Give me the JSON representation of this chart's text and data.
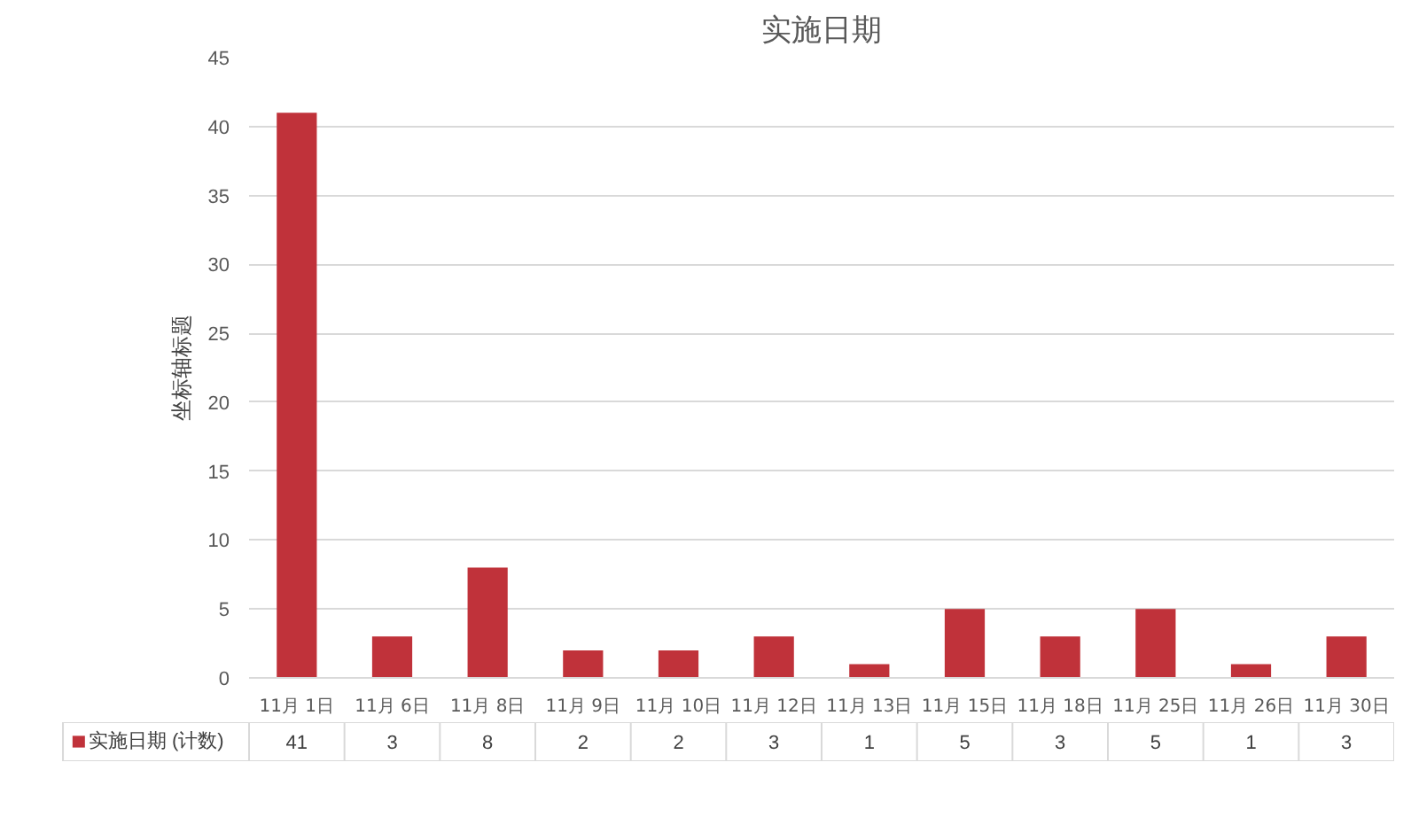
{
  "chart_data": {
    "type": "bar",
    "title": "实施日期",
    "ylabel": "坐标轴标题",
    "categories": [
      "11月 1日",
      "11月 6日",
      "11月 8日",
      "11月 9日",
      "11月 10日",
      "11月 12日",
      "11月 13日",
      "11月 15日",
      "11月 18日",
      "11月 25日",
      "11月 26日",
      "11月 30日"
    ],
    "series": [
      {
        "name": "实施日期 (计数)",
        "color": "#c0323a",
        "values": [
          41,
          3,
          8,
          2,
          2,
          3,
          1,
          5,
          3,
          5,
          1,
          3
        ]
      }
    ],
    "ylim": [
      0,
      45
    ],
    "yticks": [
      0,
      5,
      10,
      15,
      20,
      25,
      30,
      35,
      40,
      45
    ],
    "grid": "y",
    "legend": "bottom",
    "data_labels": true
  }
}
